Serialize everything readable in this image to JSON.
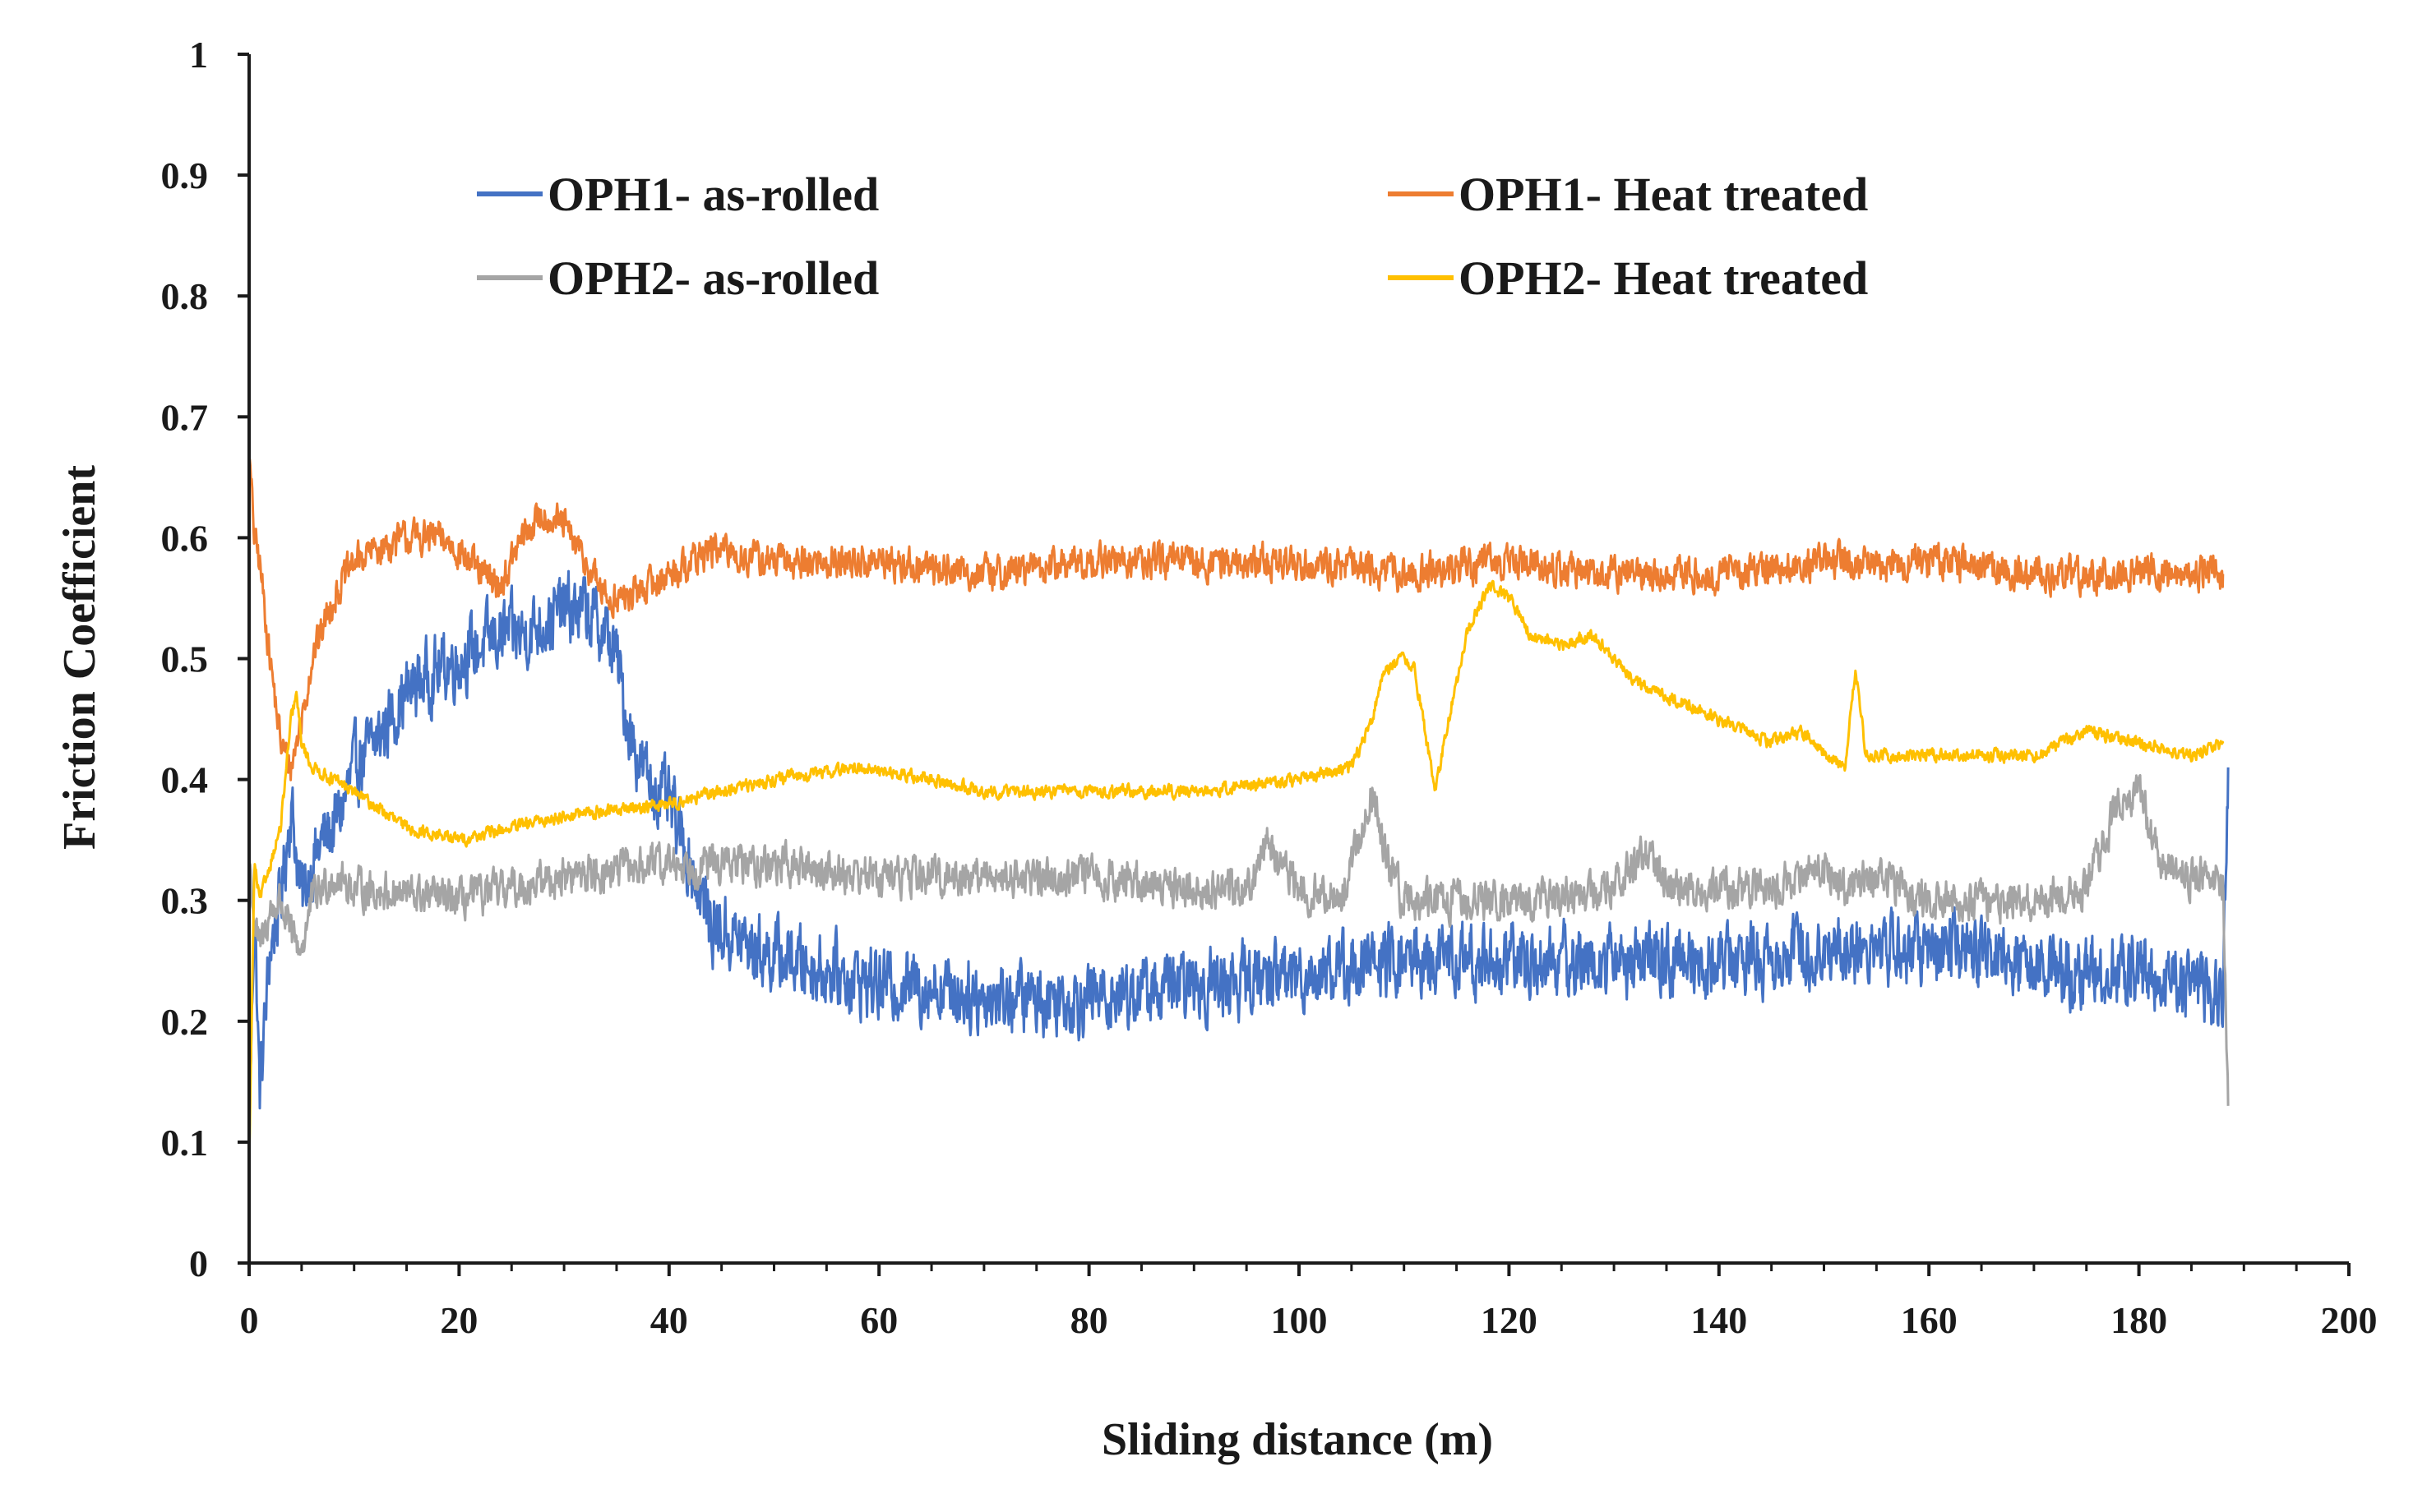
{
  "chart_data": {
    "type": "line",
    "title": "",
    "xlabel": "Sliding distance (m)",
    "ylabel": "Friction Coefficient",
    "xlim": [
      0,
      200
    ],
    "ylim": [
      0,
      1
    ],
    "xticks": [
      0,
      20,
      40,
      60,
      80,
      100,
      120,
      140,
      160,
      180,
      200
    ],
    "yticks": [
      "0",
      "0.1",
      "0.2",
      "0.3",
      "0.4",
      "0.5",
      "0.6",
      "0.7",
      "0.8",
      "0.9",
      "1"
    ],
    "grid": false,
    "legend_position": "top",
    "series": [
      {
        "name": "OPH1- as-rolled",
        "color": "#4472C4",
        "noise": 0.045,
        "points": [
          [
            0,
            0.1
          ],
          [
            0.5,
            0.3
          ],
          [
            1,
            0.14
          ],
          [
            2,
            0.26
          ],
          [
            3,
            0.3
          ],
          [
            4,
            0.38
          ],
          [
            5,
            0.3
          ],
          [
            6,
            0.33
          ],
          [
            7,
            0.35
          ],
          [
            8,
            0.36
          ],
          [
            9,
            0.38
          ],
          [
            10,
            0.41
          ],
          [
            12,
            0.43
          ],
          [
            14,
            0.46
          ],
          [
            16,
            0.48
          ],
          [
            18,
            0.49
          ],
          [
            20,
            0.5
          ],
          [
            22,
            0.51
          ],
          [
            24,
            0.52
          ],
          [
            26,
            0.52
          ],
          [
            28,
            0.53
          ],
          [
            30,
            0.54
          ],
          [
            32,
            0.54
          ],
          [
            34,
            0.52
          ],
          [
            35,
            0.5
          ],
          [
            36,
            0.45
          ],
          [
            37,
            0.42
          ],
          [
            38,
            0.4
          ],
          [
            40,
            0.38
          ],
          [
            42,
            0.33
          ],
          [
            44,
            0.28
          ],
          [
            48,
            0.26
          ],
          [
            52,
            0.25
          ],
          [
            56,
            0.24
          ],
          [
            60,
            0.23
          ],
          [
            65,
            0.23
          ],
          [
            70,
            0.22
          ],
          [
            80,
            0.22
          ],
          [
            90,
            0.23
          ],
          [
            100,
            0.24
          ],
          [
            110,
            0.25
          ],
          [
            120,
            0.25
          ],
          [
            130,
            0.25
          ],
          [
            140,
            0.25
          ],
          [
            150,
            0.26
          ],
          [
            160,
            0.26
          ],
          [
            170,
            0.25
          ],
          [
            175,
            0.24
          ],
          [
            180,
            0.24
          ],
          [
            185,
            0.23
          ],
          [
            188,
            0.22
          ],
          [
            188.5,
            0.41
          ]
        ]
      },
      {
        "name": "OPH1- Heat treated",
        "color": "#ED7D31",
        "noise": 0.022,
        "points": [
          [
            0,
            0.67
          ],
          [
            0.5,
            0.6
          ],
          [
            1,
            0.58
          ],
          [
            2,
            0.5
          ],
          [
            3,
            0.43
          ],
          [
            4,
            0.41
          ],
          [
            5,
            0.45
          ],
          [
            6,
            0.5
          ],
          [
            8,
            0.55
          ],
          [
            10,
            0.58
          ],
          [
            12,
            0.59
          ],
          [
            15,
            0.6
          ],
          [
            18,
            0.6
          ],
          [
            20,
            0.59
          ],
          [
            22,
            0.57
          ],
          [
            24,
            0.56
          ],
          [
            26,
            0.6
          ],
          [
            28,
            0.62
          ],
          [
            30,
            0.61
          ],
          [
            32,
            0.58
          ],
          [
            34,
            0.55
          ],
          [
            36,
            0.55
          ],
          [
            38,
            0.56
          ],
          [
            40,
            0.57
          ],
          [
            44,
            0.59
          ],
          [
            50,
            0.58
          ],
          [
            60,
            0.58
          ],
          [
            70,
            0.57
          ],
          [
            80,
            0.58
          ],
          [
            90,
            0.58
          ],
          [
            100,
            0.58
          ],
          [
            110,
            0.57
          ],
          [
            120,
            0.58
          ],
          [
            130,
            0.57
          ],
          [
            140,
            0.57
          ],
          [
            150,
            0.58
          ],
          [
            160,
            0.58
          ],
          [
            170,
            0.57
          ],
          [
            180,
            0.57
          ],
          [
            188,
            0.57
          ]
        ]
      },
      {
        "name": "OPH2- as-rolled",
        "color": "#A5A5A5",
        "noise": 0.025,
        "points": [
          [
            0,
            0.34
          ],
          [
            0.5,
            0.28
          ],
          [
            1,
            0.26
          ],
          [
            2,
            0.29
          ],
          [
            3,
            0.3
          ],
          [
            4,
            0.27
          ],
          [
            5,
            0.26
          ],
          [
            6,
            0.3
          ],
          [
            8,
            0.32
          ],
          [
            10,
            0.31
          ],
          [
            20,
            0.3
          ],
          [
            30,
            0.32
          ],
          [
            40,
            0.33
          ],
          [
            50,
            0.33
          ],
          [
            60,
            0.32
          ],
          [
            70,
            0.32
          ],
          [
            80,
            0.32
          ],
          [
            90,
            0.31
          ],
          [
            95,
            0.31
          ],
          [
            97,
            0.35
          ],
          [
            98,
            0.33
          ],
          [
            100,
            0.31
          ],
          [
            104,
            0.3
          ],
          [
            106,
            0.36
          ],
          [
            107,
            0.39
          ],
          [
            108,
            0.34
          ],
          [
            110,
            0.3
          ],
          [
            115,
            0.3
          ],
          [
            120,
            0.3
          ],
          [
            125,
            0.3
          ],
          [
            130,
            0.31
          ],
          [
            133,
            0.34
          ],
          [
            135,
            0.31
          ],
          [
            140,
            0.31
          ],
          [
            145,
            0.31
          ],
          [
            150,
            0.33
          ],
          [
            152,
            0.31
          ],
          [
            155,
            0.32
          ],
          [
            160,
            0.3
          ],
          [
            170,
            0.3
          ],
          [
            175,
            0.31
          ],
          [
            178,
            0.38
          ],
          [
            180,
            0.39
          ],
          [
            182,
            0.33
          ],
          [
            185,
            0.32
          ],
          [
            188,
            0.32
          ],
          [
            188.5,
            0.13
          ]
        ]
      },
      {
        "name": "OPH2- Heat treated",
        "color": "#FFC000",
        "noise": 0.008,
        "points": [
          [
            0,
            0.08
          ],
          [
            0.5,
            0.33
          ],
          [
            1,
            0.3
          ],
          [
            2,
            0.33
          ],
          [
            3,
            0.36
          ],
          [
            4,
            0.45
          ],
          [
            4.5,
            0.47
          ],
          [
            5,
            0.43
          ],
          [
            6,
            0.41
          ],
          [
            10,
            0.39
          ],
          [
            15,
            0.36
          ],
          [
            20,
            0.35
          ],
          [
            25,
            0.36
          ],
          [
            30,
            0.37
          ],
          [
            40,
            0.38
          ],
          [
            50,
            0.4
          ],
          [
            58,
            0.41
          ],
          [
            65,
            0.4
          ],
          [
            70,
            0.39
          ],
          [
            80,
            0.39
          ],
          [
            90,
            0.39
          ],
          [
            100,
            0.4
          ],
          [
            105,
            0.41
          ],
          [
            107,
            0.45
          ],
          [
            108,
            0.49
          ],
          [
            110,
            0.5
          ],
          [
            111,
            0.49
          ],
          [
            112,
            0.44
          ],
          [
            113,
            0.39
          ],
          [
            114,
            0.44
          ],
          [
            116,
            0.52
          ],
          [
            118,
            0.56
          ],
          [
            120,
            0.55
          ],
          [
            122,
            0.52
          ],
          [
            125,
            0.51
          ],
          [
            128,
            0.52
          ],
          [
            130,
            0.5
          ],
          [
            132,
            0.48
          ],
          [
            135,
            0.47
          ],
          [
            140,
            0.45
          ],
          [
            145,
            0.43
          ],
          [
            148,
            0.44
          ],
          [
            150,
            0.42
          ],
          [
            152,
            0.41
          ],
          [
            153,
            0.49
          ],
          [
            154,
            0.42
          ],
          [
            160,
            0.42
          ],
          [
            170,
            0.42
          ],
          [
            175,
            0.44
          ],
          [
            180,
            0.43
          ],
          [
            185,
            0.42
          ],
          [
            188,
            0.43
          ]
        ]
      }
    ]
  }
}
